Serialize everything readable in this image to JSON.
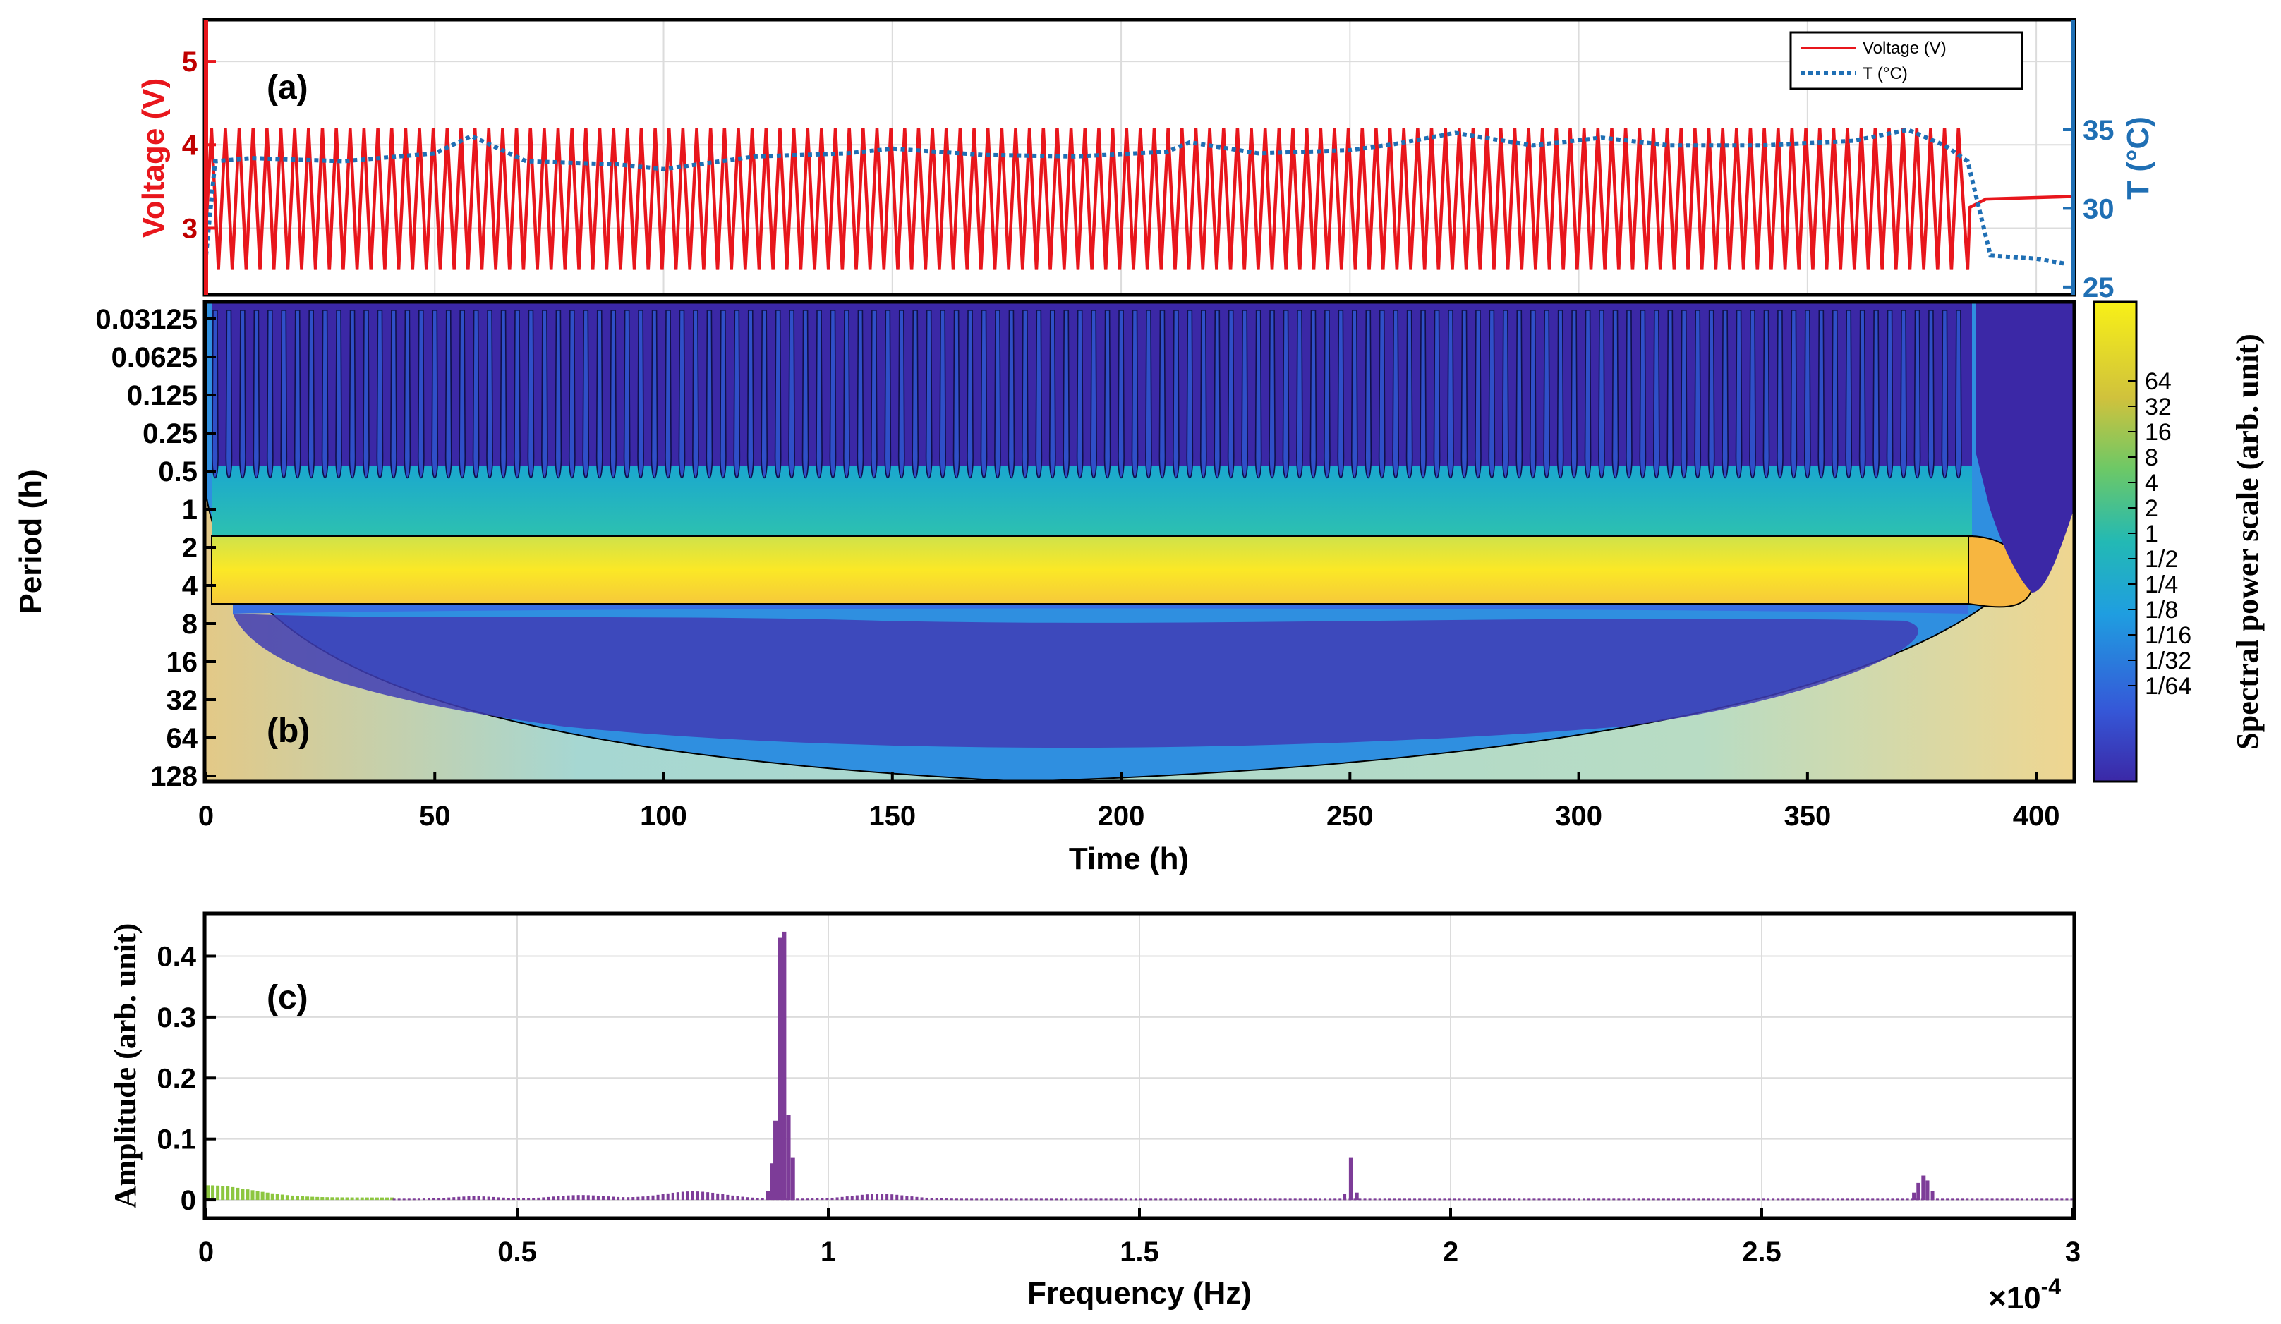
{
  "colors": {
    "voltage": "#e8161c",
    "temperature": "#1f6fb4",
    "fft_main": "#7d3c98",
    "fft_low": "#8cc63f",
    "cwt_low": "#3b28a6",
    "cwt_high": "#f7e13a"
  },
  "chart_data": [
    {
      "id": "a",
      "type": "line",
      "panel_label": "(a)",
      "xlim": [
        0,
        408
      ],
      "ylim_left": [
        2.2,
        5.5
      ],
      "ylim_right": [
        24.5,
        42
      ],
      "ylabel_left": "Voltage (V)",
      "ylabel_right": "T (°C)",
      "yticks_left": [
        "3",
        "4",
        "5"
      ],
      "yticks_right": [
        "25",
        "30",
        "35"
      ],
      "legend": [
        "Voltage (V)",
        "T (°C)"
      ],
      "legend_position": "top-right",
      "series": [
        {
          "name": "Voltage (V)",
          "cycle_period_h": 3.03,
          "cycles": 127,
          "v_max": 4.2,
          "v_min": 2.5,
          "end_cycling_h": 385,
          "rest_value": 3.35
        },
        {
          "name": "T (°C)",
          "x": [
            0,
            2,
            10,
            30,
            50,
            58,
            70,
            90,
            100,
            120,
            140,
            150,
            170,
            190,
            210,
            215,
            230,
            250,
            260,
            273,
            290,
            305,
            320,
            340,
            360,
            372,
            380,
            385,
            390,
            400,
            406
          ],
          "y": [
            27,
            33,
            33.2,
            33,
            33.5,
            34.6,
            33,
            32.8,
            32.5,
            33.3,
            33.5,
            33.8,
            33.4,
            33.3,
            33.6,
            34.2,
            33.5,
            33.7,
            34.1,
            34.8,
            34,
            34.5,
            34,
            34,
            34.3,
            35,
            34,
            33,
            27,
            26.8,
            26.5
          ]
        }
      ]
    },
    {
      "id": "b",
      "type": "heatmap",
      "panel_label": "(b)",
      "xlabel": "Time (h)",
      "ylabel": "Period (h)",
      "xticks": [
        "0",
        "50",
        "100",
        "150",
        "200",
        "250",
        "300",
        "350",
        "400"
      ],
      "yticks": [
        "0.03125",
        "0.0625",
        "0.125",
        "0.25",
        "0.5",
        "1",
        "2",
        "4",
        "8",
        "16",
        "32",
        "64",
        "128"
      ],
      "colorbar_label": "Spectral power scale (arb. unit)",
      "colorbar_ticks": [
        "64",
        "32",
        "16",
        "8",
        "4",
        "2",
        "1",
        "1/2",
        "1/4",
        "1/8",
        "1/16",
        "1/32",
        "1/64"
      ],
      "dominant_period_h": 3.0,
      "xlim": [
        0,
        408
      ]
    },
    {
      "id": "c",
      "type": "bar",
      "panel_label": "(c)",
      "xlabel": "Frequency (Hz)",
      "ylabel": "Amplitude (arb. unit)",
      "xlim": [
        0,
        3
      ],
      "ylim": [
        -0.03,
        0.47
      ],
      "xticks": [
        "0",
        "0.5",
        "1",
        "1.5",
        "2",
        "2.5",
        "3"
      ],
      "yticks": [
        "0",
        "0.1",
        "0.2",
        "0.3",
        "0.4"
      ],
      "x_multiplier": "×10",
      "x_multiplier_exp": "-4",
      "peaks": [
        {
          "freq": 0.903,
          "amp": 0.015
        },
        {
          "freq": 0.91,
          "amp": 0.06
        },
        {
          "freq": 0.915,
          "amp": 0.13
        },
        {
          "freq": 0.922,
          "amp": 0.43
        },
        {
          "freq": 0.929,
          "amp": 0.44
        },
        {
          "freq": 0.936,
          "amp": 0.14
        },
        {
          "freq": 0.943,
          "amp": 0.07
        },
        {
          "freq": 1.84,
          "amp": 0.07
        },
        {
          "freq": 2.76,
          "amp": 0.04
        }
      ]
    }
  ]
}
